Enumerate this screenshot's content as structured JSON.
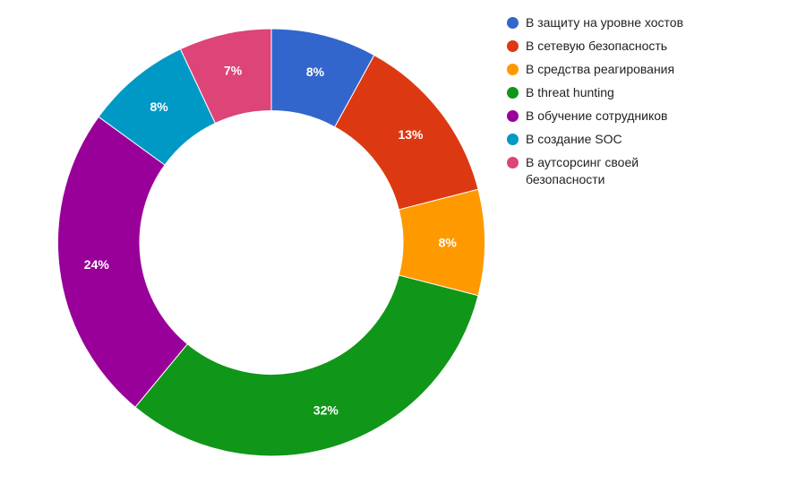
{
  "chart_data": {
    "type": "pie",
    "donut": true,
    "title": "",
    "categories": [
      "В защиту на уровне хостов",
      "В сетевую безопасность",
      "В средства реагирования",
      "В threat hunting",
      "В обучение сотрудников",
      "В создание SOC",
      "В аутсорсинг своей безопасности"
    ],
    "values": [
      8,
      13,
      8,
      32,
      24,
      8,
      7
    ],
    "labels": [
      "8%",
      "13%",
      "8%",
      "32%",
      "24%",
      "8%",
      "7%"
    ],
    "colors": [
      "#3366cc",
      "#dc3912",
      "#ff9900",
      "#109618",
      "#990099",
      "#0099c6",
      "#dd4477"
    ],
    "legend_position": "right",
    "unit": "%"
  }
}
